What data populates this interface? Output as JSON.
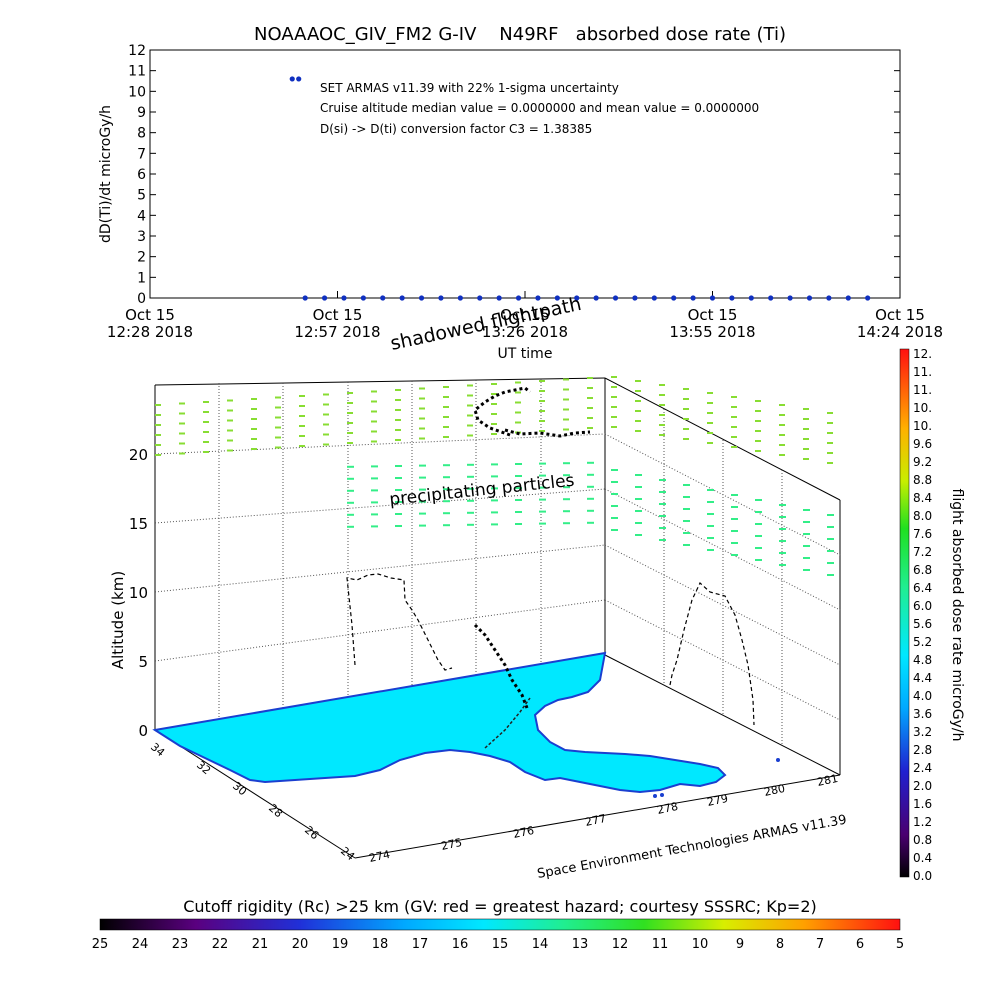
{
  "title": "NOAAAOC_GIV_FM2 G-IV    N49RF   absorbed dose rate (Ti)",
  "colors": {
    "marker": "#1030c0",
    "land": "#00e8ff",
    "coast": "#1a3fd0",
    "precip": "#33ee88",
    "shadow": "#88dd33",
    "text": "#000000"
  },
  "timeseries": {
    "ylabel": "dD(Ti)/dt microGy/h",
    "xlabel": "UT time",
    "yticks": [
      "0",
      "1",
      "2",
      "3",
      "4",
      "5",
      "6",
      "7",
      "8",
      "9",
      "10",
      "11",
      "12"
    ],
    "xticks": [
      {
        "l1": "Oct 15",
        "l2": "12:28 2018"
      },
      {
        "l1": "Oct 15",
        "l2": "12:57 2018"
      },
      {
        "l1": "Oct 15",
        "l2": "13:26 2018"
      },
      {
        "l1": "Oct 15",
        "l2": "13:55 2018"
      },
      {
        "l1": "Oct 15",
        "l2": "14:24 2018"
      }
    ],
    "annotations": [
      "SET ARMAS v11.39 with 22% 1-sigma uncertainty",
      "Cruise altitude median value = 0.0000000 and mean value = 0.0000000",
      "D(si) -> D(ti) conversion factor C3 = 1.38385"
    ]
  },
  "labels3d": {
    "altitude_label": "Altitude (km)",
    "z_ticks": [
      "0",
      "5",
      "10",
      "15",
      "20"
    ],
    "lat_ticks": [
      "34",
      "32",
      "30",
      "28",
      "26",
      "24"
    ],
    "lon_ticks": [
      "274",
      "275",
      "276",
      "277",
      "278",
      "279",
      "280",
      "281"
    ],
    "shadowed": "shadowed flightpath",
    "precip": "precipitating particles",
    "credit": "Space Environment Technologies ARMAS v11.39"
  },
  "doseColorbar": {
    "label": "flight absorbed dose rate microGy/h",
    "ticks": [
      "12.",
      "11.",
      "11.",
      "10.",
      "10.",
      "9.6",
      "9.2",
      "8.8",
      "8.4",
      "8.0",
      "7.6",
      "7.2",
      "6.8",
      "6.4",
      "6.0",
      "5.6",
      "5.2",
      "4.8",
      "4.4",
      "4.0",
      "3.6",
      "3.2",
      "2.8",
      "2.4",
      "2.0",
      "1.6",
      "1.2",
      "0.8",
      "0.4",
      "0.0"
    ]
  },
  "rigidityColorbar": {
    "label": "Cutoff rigidity (Rc) >25 km (GV: red = greatest hazard; courtesy SSSRC; Kp=2)",
    "ticks": [
      "25",
      "24",
      "23",
      "22",
      "21",
      "20",
      "19",
      "18",
      "17",
      "16",
      "15",
      "14",
      "13",
      "12",
      "11",
      "10",
      "9",
      "8",
      "7",
      "6",
      "5"
    ]
  },
  "chart_data": {
    "type": "scatter",
    "title": "NOAAAOC_GIV_FM2 G-IV    N49RF   absorbed dose rate (Ti)",
    "xlabel": "UT time",
    "ylabel": "dD(Ti)/dt microGy/h",
    "xlim": [
      "2018-10-15 12:28",
      "2018-10-15 14:24"
    ],
    "ylim": [
      0,
      12
    ],
    "x_ticks": [
      "Oct 15 12:28 2018",
      "Oct 15 12:57 2018",
      "Oct 15 13:26 2018",
      "Oct 15 13:55 2018",
      "Oct 15 14:24 2018"
    ],
    "points": [
      {
        "t": "12:50",
        "v": 10.6
      },
      {
        "t": "12:51",
        "v": 10.6
      },
      {
        "t": "12:52",
        "v": 0
      },
      {
        "t": "12:55",
        "v": 0
      },
      {
        "t": "12:58",
        "v": 0
      },
      {
        "t": "13:01",
        "v": 0
      },
      {
        "t": "13:04",
        "v": 0
      },
      {
        "t": "13:07",
        "v": 0
      },
      {
        "t": "13:10",
        "v": 0
      },
      {
        "t": "13:13",
        "v": 0
      },
      {
        "t": "13:16",
        "v": 0
      },
      {
        "t": "13:19",
        "v": 0
      },
      {
        "t": "13:22",
        "v": 0
      },
      {
        "t": "13:25",
        "v": 0
      },
      {
        "t": "13:28",
        "v": 0
      },
      {
        "t": "13:31",
        "v": 0
      },
      {
        "t": "13:34",
        "v": 0
      },
      {
        "t": "13:37",
        "v": 0
      },
      {
        "t": "13:40",
        "v": 0
      },
      {
        "t": "13:43",
        "v": 0
      },
      {
        "t": "13:46",
        "v": 0
      },
      {
        "t": "13:49",
        "v": 0
      },
      {
        "t": "13:52",
        "v": 0
      },
      {
        "t": "13:55",
        "v": 0
      },
      {
        "t": "13:58",
        "v": 0
      },
      {
        "t": "14:01",
        "v": 0
      },
      {
        "t": "14:04",
        "v": 0
      },
      {
        "t": "14:07",
        "v": 0
      },
      {
        "t": "14:10",
        "v": 0
      },
      {
        "t": "14:13",
        "v": 0
      },
      {
        "t": "14:16",
        "v": 0
      },
      {
        "t": "14:19",
        "v": 0
      }
    ],
    "grid": false
  }
}
